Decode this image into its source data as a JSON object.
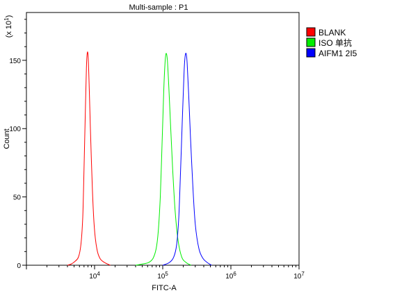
{
  "chart_data": {
    "type": "line",
    "title": "Multi-sample : P1",
    "xlabel": "FITC-A",
    "ylabel": "Count",
    "yscale_label": {
      "base": "(x 10",
      "exp": "1",
      "close": ")"
    },
    "x_scale": "log",
    "xlim": [
      1000,
      10000000
    ],
    "ylim": [
      0,
      185
    ],
    "y_ticks": [
      0,
      50,
      100,
      150
    ],
    "y_tick_labels": [
      "0",
      "50",
      "100",
      "150"
    ],
    "x_ticks": [
      10000,
      100000,
      1000000,
      10000000
    ],
    "x_tick_labels": [
      {
        "base": "10",
        "exp": "4"
      },
      {
        "base": "10",
        "exp": "5"
      },
      {
        "base": "10",
        "exp": "6"
      },
      {
        "base": "10",
        "exp": "7"
      }
    ],
    "grid": false,
    "legend_position": "right",
    "series": [
      {
        "name": "BLANK",
        "color": "#ff0000",
        "points": [
          [
            4000,
            0
          ],
          [
            4600,
            1
          ],
          [
            5200,
            3
          ],
          [
            5800,
            6
          ],
          [
            6300,
            15
          ],
          [
            6700,
            35
          ],
          [
            7000,
            70
          ],
          [
            7300,
            110
          ],
          [
            7600,
            145
          ],
          [
            7850,
            156
          ],
          [
            8100,
            150
          ],
          [
            8400,
            125
          ],
          [
            8800,
            90
          ],
          [
            9300,
            55
          ],
          [
            9900,
            28
          ],
          [
            10800,
            12
          ],
          [
            12000,
            5
          ],
          [
            14000,
            2
          ],
          [
            17000,
            0
          ]
        ]
      },
      {
        "name": "ISO 单抗",
        "color": "#00ee00",
        "points": [
          [
            40000,
            0
          ],
          [
            52000,
            1
          ],
          [
            62000,
            2
          ],
          [
            72000,
            5
          ],
          [
            80000,
            12
          ],
          [
            86000,
            25
          ],
          [
            92000,
            50
          ],
          [
            98000,
            90
          ],
          [
            103000,
            125
          ],
          [
            108000,
            148
          ],
          [
            112000,
            155
          ],
          [
            117000,
            150
          ],
          [
            123000,
            130
          ],
          [
            131000,
            100
          ],
          [
            140000,
            70
          ],
          [
            152000,
            40
          ],
          [
            168000,
            18
          ],
          [
            190000,
            6
          ],
          [
            220000,
            2
          ],
          [
            260000,
            0
          ]
        ]
      },
      {
        "name": "AIFM1 2I5",
        "color": "#0000ff",
        "points": [
          [
            100000,
            0
          ],
          [
            125000,
            2
          ],
          [
            145000,
            6
          ],
          [
            160000,
            15
          ],
          [
            172000,
            35
          ],
          [
            183000,
            70
          ],
          [
            195000,
            110
          ],
          [
            205000,
            140
          ],
          [
            212000,
            152
          ],
          [
            220000,
            155
          ],
          [
            228000,
            148
          ],
          [
            240000,
            125
          ],
          [
            255000,
            95
          ],
          [
            275000,
            60
          ],
          [
            300000,
            30
          ],
          [
            340000,
            12
          ],
          [
            390000,
            5
          ],
          [
            450000,
            2
          ],
          [
            520000,
            0
          ]
        ]
      }
    ]
  }
}
